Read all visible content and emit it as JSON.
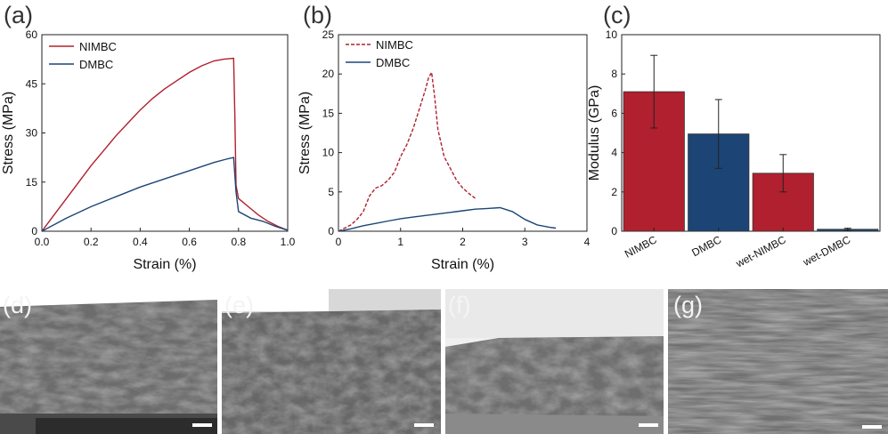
{
  "colors": {
    "red": "#b0202e",
    "blue": "#1c4575",
    "axis": "#222222",
    "sem_base": "#6a6a6a"
  },
  "panel_letters": {
    "a": "(a)",
    "b": "(b)",
    "c": "(c)",
    "d": "(d)",
    "e": "(e)",
    "f": "(f)",
    "g": "(g)"
  },
  "chart_data": [
    {
      "id": "a",
      "type": "line",
      "xlabel": "Strain (%)",
      "ylabel": "Stress (MPa)",
      "xlim": [
        0,
        1.0
      ],
      "ylim": [
        0,
        60
      ],
      "xticks": [
        0.0,
        0.2,
        0.4,
        0.6,
        0.8,
        1.0
      ],
      "xtick_labels": [
        "0.0",
        "0.2",
        "0.4",
        "0.6",
        "0.8",
        "1.0"
      ],
      "yticks": [
        0,
        15,
        30,
        45,
        60
      ],
      "ytick_labels": [
        "0",
        "15",
        "30",
        "45",
        "60"
      ],
      "legend": [
        "NIMBC",
        "DMBC"
      ],
      "series": [
        {
          "name": "NIMBC",
          "style": "solid",
          "color": "#b0202e",
          "x": [
            0,
            0.05,
            0.1,
            0.15,
            0.2,
            0.25,
            0.3,
            0.35,
            0.4,
            0.45,
            0.5,
            0.55,
            0.6,
            0.65,
            0.7,
            0.74,
            0.78,
            0.785,
            0.79,
            0.8,
            0.84,
            0.88,
            0.92,
            0.96,
            1.0
          ],
          "y": [
            0,
            5,
            10,
            15,
            20,
            24.5,
            29,
            33,
            37,
            40.5,
            43.5,
            46,
            48.5,
            50.5,
            52,
            52.5,
            52.8,
            35,
            14,
            10,
            7.5,
            5,
            3,
            1.5,
            0.3
          ]
        },
        {
          "name": "DMBC",
          "style": "solid",
          "color": "#1c4575",
          "x": [
            0,
            0.05,
            0.1,
            0.2,
            0.3,
            0.4,
            0.5,
            0.6,
            0.7,
            0.75,
            0.78,
            0.79,
            0.8,
            0.85,
            0.9,
            0.95,
            1.0
          ],
          "y": [
            0,
            2,
            4,
            7.5,
            10.5,
            13.5,
            16,
            18.5,
            21,
            22,
            22.5,
            12,
            6,
            4,
            3,
            1.5,
            0.3
          ]
        }
      ]
    },
    {
      "id": "b",
      "type": "line",
      "xlabel": "Strain (%)",
      "ylabel": "Stress (MPa)",
      "xlim": [
        0,
        4
      ],
      "ylim": [
        0,
        25
      ],
      "xticks": [
        0,
        1,
        2,
        3,
        4
      ],
      "xtick_labels": [
        "0",
        "1",
        "2",
        "3",
        "4"
      ],
      "yticks": [
        0,
        5,
        10,
        15,
        20,
        25
      ],
      "ytick_labels": [
        "0",
        "5",
        "10",
        "15",
        "20",
        "25"
      ],
      "legend": [
        "NIMBC",
        "DMBC"
      ],
      "series": [
        {
          "name": "NIMBC",
          "style": "dashed",
          "color": "#b0202e",
          "x": [
            0,
            0.2,
            0.3,
            0.4,
            0.5,
            0.6,
            0.7,
            0.8,
            0.9,
            1.0,
            1.1,
            1.2,
            1.3,
            1.4,
            1.45,
            1.5,
            1.55,
            1.6,
            1.7,
            1.8,
            1.9,
            2.0,
            2.1,
            2.2
          ],
          "y": [
            0,
            0.8,
            1.5,
            2.5,
            4.5,
            5.5,
            5.8,
            6.5,
            7.5,
            9.5,
            11,
            13,
            15.5,
            18,
            19.5,
            20.2,
            17,
            13,
            9.5,
            8,
            6.5,
            5.5,
            4.8,
            4.2
          ]
        },
        {
          "name": "DMBC",
          "style": "solid",
          "color": "#1c4575",
          "x": [
            0,
            0.2,
            0.4,
            0.6,
            0.8,
            1.0,
            1.2,
            1.4,
            1.6,
            1.8,
            2.0,
            2.2,
            2.4,
            2.6,
            2.8,
            3.0,
            3.2,
            3.4,
            3.5
          ],
          "y": [
            0,
            0.3,
            0.7,
            1.0,
            1.3,
            1.6,
            1.8,
            2.0,
            2.2,
            2.4,
            2.6,
            2.8,
            2.9,
            3.0,
            2.5,
            1.5,
            0.8,
            0.5,
            0.4
          ]
        }
      ]
    },
    {
      "id": "c",
      "type": "bar",
      "xlabel": "",
      "ylabel": "Modulus (GPa)",
      "ylim": [
        0,
        10
      ],
      "yticks": [
        0,
        2,
        4,
        6,
        8,
        10
      ],
      "ytick_labels": [
        "0",
        "2",
        "4",
        "6",
        "8",
        "10"
      ],
      "categories": [
        "NIMBC",
        "DMBC",
        "wet-NIMBC",
        "wet-DMBC"
      ],
      "values": [
        7.1,
        4.95,
        2.95,
        0.1
      ],
      "errors": [
        1.85,
        1.75,
        0.95,
        0.05
      ],
      "bar_colors": [
        "#b0202e",
        "#1c4575",
        "#b0202e",
        "#1c4575"
      ]
    }
  ],
  "sem_images": [
    {
      "id": "d",
      "label": "(d)",
      "description_icon": "sem-micrograph"
    },
    {
      "id": "e",
      "label": "(e)",
      "description_icon": "sem-micrograph"
    },
    {
      "id": "f",
      "label": "(f)",
      "description_icon": "sem-micrograph"
    },
    {
      "id": "g",
      "label": "(g)",
      "description_icon": "sem-micrograph"
    }
  ]
}
